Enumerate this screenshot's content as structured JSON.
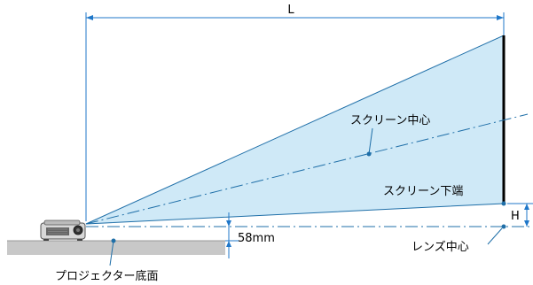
{
  "labels": {
    "distance": "L",
    "height": "H",
    "offset": "58mm",
    "screen_center": "スクリーン中心",
    "screen_bottom": "スクリーン下端",
    "lens_center": "レンズ中心",
    "projector_bottom": "プロジェクター底面"
  },
  "colors": {
    "beam_fill": "#cfe9f7",
    "beam_edge": "#1f6fa8",
    "dimension": "#1f77c9",
    "screen": "#000000",
    "floor": "#c8c8c8"
  }
}
